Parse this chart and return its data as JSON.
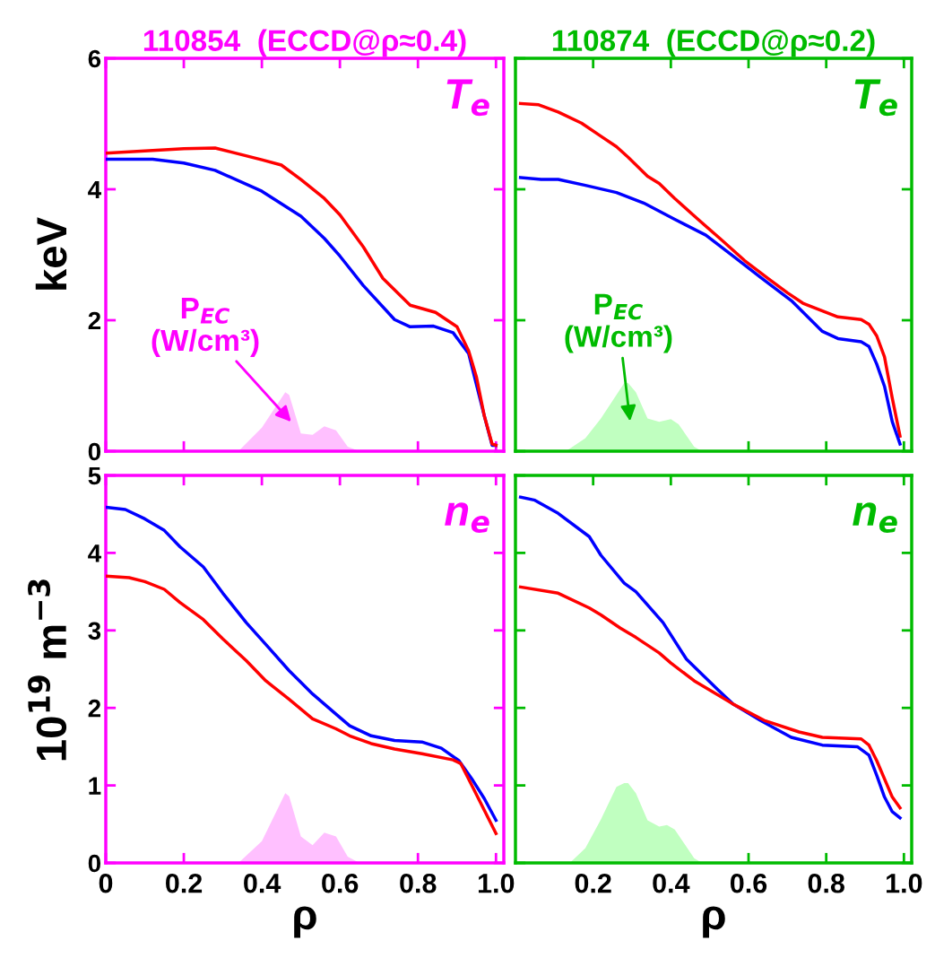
{
  "chart_data": [
    {
      "type": "line",
      "title": "110854  (ECCD@ρ≈0.4)",
      "ylabel": "keV",
      "xlim": [
        0,
        1.02
      ],
      "ylim": [
        0,
        6
      ],
      "xticks": [
        {
          "value": 0,
          "label": null
        },
        {
          "value": 0.2,
          "label": null
        },
        {
          "value": 0.4,
          "label": null
        },
        {
          "value": 0.6,
          "label": null
        },
        {
          "value": 0.8,
          "label": null
        },
        {
          "value": 1.0,
          "label": null
        }
      ],
      "yticks": [
        0,
        2,
        4,
        6
      ],
      "tick_labels": "y",
      "grid": false,
      "line_style": "solid",
      "marker": "none",
      "annotations": [
        "T$_{e}$",
        "P$_{EC}$\n(W/cm³)"
      ],
      "series": [
        {
          "color": "#0000ff",
          "x": [
            0,
            0.12,
            0.2,
            0.28,
            0.4,
            0.5,
            0.56,
            0.6,
            0.66,
            0.74,
            0.78,
            0.84,
            0.89,
            0.93,
            0.97,
            0.99,
            1.0
          ],
          "values": [
            4.46,
            4.46,
            4.4,
            4.29,
            3.97,
            3.59,
            3.25,
            2.98,
            2.53,
            2.01,
            1.9,
            1.91,
            1.81,
            1.49,
            0.54,
            0.09,
            0.09
          ]
        },
        {
          "color": "#ff0000",
          "x": [
            0,
            0.2,
            0.28,
            0.4,
            0.45,
            0.5,
            0.56,
            0.6,
            0.66,
            0.71,
            0.78,
            0.845,
            0.9,
            0.93,
            0.95,
            0.97,
            0.99,
            1.0
          ],
          "values": [
            4.55,
            4.62,
            4.63,
            4.45,
            4.37,
            4.15,
            3.86,
            3.61,
            3.12,
            2.64,
            2.23,
            2.12,
            1.9,
            1.53,
            1.13,
            0.54,
            0.11,
            0.09
          ]
        },
        {
          "type": "area",
          "color": "#ffc0ff",
          "x": [
            0.34,
            0.4,
            0.46,
            0.47,
            0.5,
            0.53,
            0.56,
            0.59,
            0.62,
            0.65
          ],
          "values": [
            0,
            0.36,
            0.9,
            0.86,
            0.27,
            0.25,
            0.38,
            0.32,
            0.07,
            0
          ]
        }
      ]
    },
    {
      "type": "line",
      "title": "110874  (ECCD@ρ≈0.2)",
      "xlim": [
        0,
        1.02
      ],
      "ylim": [
        0,
        6
      ],
      "xticks": [
        {
          "value": 0.2,
          "label": null
        },
        {
          "value": 0.4,
          "label": null
        },
        {
          "value": 0.6,
          "label": null
        },
        {
          "value": 0.8,
          "label": null
        },
        {
          "value": 1.0,
          "label": null
        }
      ],
      "yticks": [
        0,
        2,
        4,
        6
      ],
      "tick_labels": false,
      "grid": false,
      "line_style": "solid",
      "marker": "none",
      "annotations": [
        "T$_{e}$",
        "P$_{EC}$\n(W/cm³)"
      ],
      "series": [
        {
          "color": "#ff0000",
          "x": [
            0.013,
            0.06,
            0.11,
            0.17,
            0.22,
            0.26,
            0.29,
            0.34,
            0.37,
            0.41,
            0.47,
            0.53,
            0.59,
            0.65,
            0.7,
            0.74,
            0.83,
            0.89,
            0.91,
            0.93,
            0.95,
            0.97,
            0.99
          ],
          "values": [
            5.31,
            5.29,
            5.18,
            5.01,
            4.81,
            4.65,
            4.49,
            4.2,
            4.09,
            3.86,
            3.54,
            3.23,
            2.91,
            2.64,
            2.42,
            2.26,
            2.05,
            2.01,
            1.94,
            1.76,
            1.44,
            0.81,
            0.23
          ]
        },
        {
          "color": "#0000ff",
          "x": [
            0.013,
            0.066,
            0.11,
            0.18,
            0.26,
            0.33,
            0.41,
            0.49,
            0.56,
            0.63,
            0.71,
            0.79,
            0.83,
            0.89,
            0.91,
            0.93,
            0.95,
            0.97,
            0.99
          ],
          "values": [
            4.18,
            4.15,
            4.15,
            4.06,
            3.95,
            3.79,
            3.54,
            3.3,
            2.98,
            2.66,
            2.3,
            1.83,
            1.72,
            1.67,
            1.6,
            1.33,
            0.99,
            0.45,
            0.11
          ]
        },
        {
          "type": "area",
          "color": "#c0ffc0",
          "x": [
            0.13,
            0.18,
            0.22,
            0.28,
            0.29,
            0.31,
            0.34,
            0.37,
            0.4,
            0.42,
            0.46,
            0.48
          ],
          "values": [
            0,
            0.2,
            0.5,
            1.04,
            1.04,
            0.9,
            0.5,
            0.45,
            0.49,
            0.41,
            0.07,
            0
          ]
        }
      ]
    },
    {
      "type": "line",
      "xlabel": "ρ",
      "ylabel": "10$^{19}$ m$^{−3}$",
      "xlim": [
        0,
        1.02
      ],
      "ylim": [
        0,
        5
      ],
      "xticks": [
        0,
        0.2,
        0.4,
        0.6,
        0.8,
        {
          "value": 1.0,
          "label": "1.0"
        }
      ],
      "yticks": [
        0,
        1,
        2,
        3,
        4,
        5
      ],
      "grid": false,
      "line_style": "solid",
      "marker": "none",
      "annotations": [
        "n$_{e}$"
      ],
      "series": [
        {
          "color": "#0000ff",
          "x": [
            0,
            0.05,
            0.1,
            0.15,
            0.19,
            0.25,
            0.3,
            0.36,
            0.41,
            0.47,
            0.53,
            0.59,
            0.625,
            0.68,
            0.74,
            0.81,
            0.86,
            0.905,
            0.94,
            0.97,
            1.0
          ],
          "values": [
            4.59,
            4.56,
            4.44,
            4.29,
            4.08,
            3.82,
            3.48,
            3.1,
            2.82,
            2.48,
            2.18,
            1.92,
            1.77,
            1.64,
            1.58,
            1.56,
            1.48,
            1.32,
            1.07,
            0.83,
            0.55
          ]
        },
        {
          "color": "#ff0000",
          "x": [
            0,
            0.06,
            0.1,
            0.15,
            0.19,
            0.25,
            0.3,
            0.36,
            0.41,
            0.47,
            0.53,
            0.59,
            0.625,
            0.68,
            0.74,
            0.81,
            0.89,
            0.91,
            0.94,
            0.97,
            1.0
          ],
          "values": [
            3.7,
            3.68,
            3.63,
            3.53,
            3.36,
            3.14,
            2.89,
            2.61,
            2.35,
            2.11,
            1.86,
            1.73,
            1.64,
            1.54,
            1.47,
            1.41,
            1.33,
            1.28,
            0.98,
            0.68,
            0.38
          ]
        },
        {
          "type": "area",
          "color": "#ffc0ff",
          "x": [
            0.34,
            0.4,
            0.46,
            0.47,
            0.5,
            0.53,
            0.56,
            0.59,
            0.62,
            0.65
          ],
          "values": [
            0,
            0.28,
            0.9,
            0.86,
            0.34,
            0.23,
            0.39,
            0.34,
            0.08,
            0
          ]
        }
      ]
    },
    {
      "type": "line",
      "xlabel": "ρ",
      "xlim": [
        0,
        1.02
      ],
      "ylim": [
        0,
        5
      ],
      "xticks": [
        0.2,
        0.4,
        0.6,
        0.8,
        {
          "value": 1.0,
          "label": "1.0"
        }
      ],
      "yticks": [
        0,
        1,
        2,
        3,
        4,
        5
      ],
      "tick_labels": "x",
      "grid": false,
      "line_style": "solid",
      "marker": "none",
      "annotations": [
        "n$_{e}$"
      ],
      "series": [
        {
          "color": "#0000ff",
          "x": [
            0.013,
            0.05,
            0.11,
            0.19,
            0.22,
            0.28,
            0.31,
            0.38,
            0.44,
            0.52,
            0.56,
            0.63,
            0.71,
            0.79,
            0.88,
            0.91,
            0.93,
            0.95,
            0.97,
            0.99
          ],
          "values": [
            4.72,
            4.68,
            4.51,
            4.21,
            3.97,
            3.61,
            3.5,
            3.1,
            2.63,
            2.24,
            2.05,
            1.84,
            1.62,
            1.52,
            1.5,
            1.39,
            1.13,
            0.85,
            0.66,
            0.58
          ]
        },
        {
          "color": "#ff0000",
          "x": [
            0.013,
            0.11,
            0.19,
            0.22,
            0.27,
            0.31,
            0.37,
            0.4,
            0.46,
            0.53,
            0.56,
            0.64,
            0.73,
            0.79,
            0.89,
            0.91,
            0.93,
            0.97,
            0.99
          ],
          "values": [
            3.56,
            3.48,
            3.29,
            3.2,
            3.03,
            2.91,
            2.71,
            2.58,
            2.35,
            2.14,
            2.05,
            1.84,
            1.69,
            1.62,
            1.6,
            1.52,
            1.32,
            0.85,
            0.71
          ]
        },
        {
          "type": "area",
          "color": "#c0ffc0",
          "x": [
            0.14,
            0.18,
            0.22,
            0.26,
            0.28,
            0.29,
            0.31,
            0.34,
            0.37,
            0.39,
            0.41,
            0.46,
            0.48
          ],
          "values": [
            0,
            0.19,
            0.56,
            0.98,
            1.03,
            1.03,
            0.9,
            0.55,
            0.47,
            0.49,
            0.43,
            0.06,
            0
          ]
        }
      ]
    }
  ]
}
